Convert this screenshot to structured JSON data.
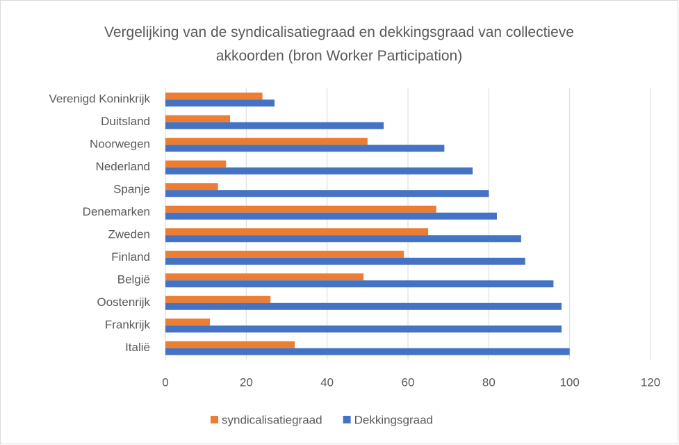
{
  "chart_data": {
    "type": "hbar",
    "title": "Vergelijking van de syndicalisatiegraad en dekkingsgraad van collectieve akkoorden (bron Worker Participation)",
    "categories": [
      "Verenigd Koninkrijk",
      "Duitsland",
      "Noorwegen",
      "Nederland",
      "Spanje",
      "Denemarken",
      "Zweden",
      "Finland",
      "België",
      "Oostenrijk",
      "Frankrijk",
      "Italië"
    ],
    "series": [
      {
        "name": "syndicalisatiegraad",
        "color": "#ed7d31",
        "values": [
          24,
          16,
          50,
          15,
          13,
          67,
          65,
          59,
          49,
          26,
          11,
          32
        ]
      },
      {
        "name": "Dekkingsgraad",
        "color": "#4472c4",
        "values": [
          27,
          54,
          69,
          76,
          80,
          82,
          88,
          89,
          96,
          98,
          98,
          100
        ]
      }
    ],
    "xlim": [
      0,
      120
    ],
    "xticks": [
      0,
      20,
      40,
      60,
      80,
      100,
      120
    ],
    "grid": true,
    "legend": "bottom"
  }
}
